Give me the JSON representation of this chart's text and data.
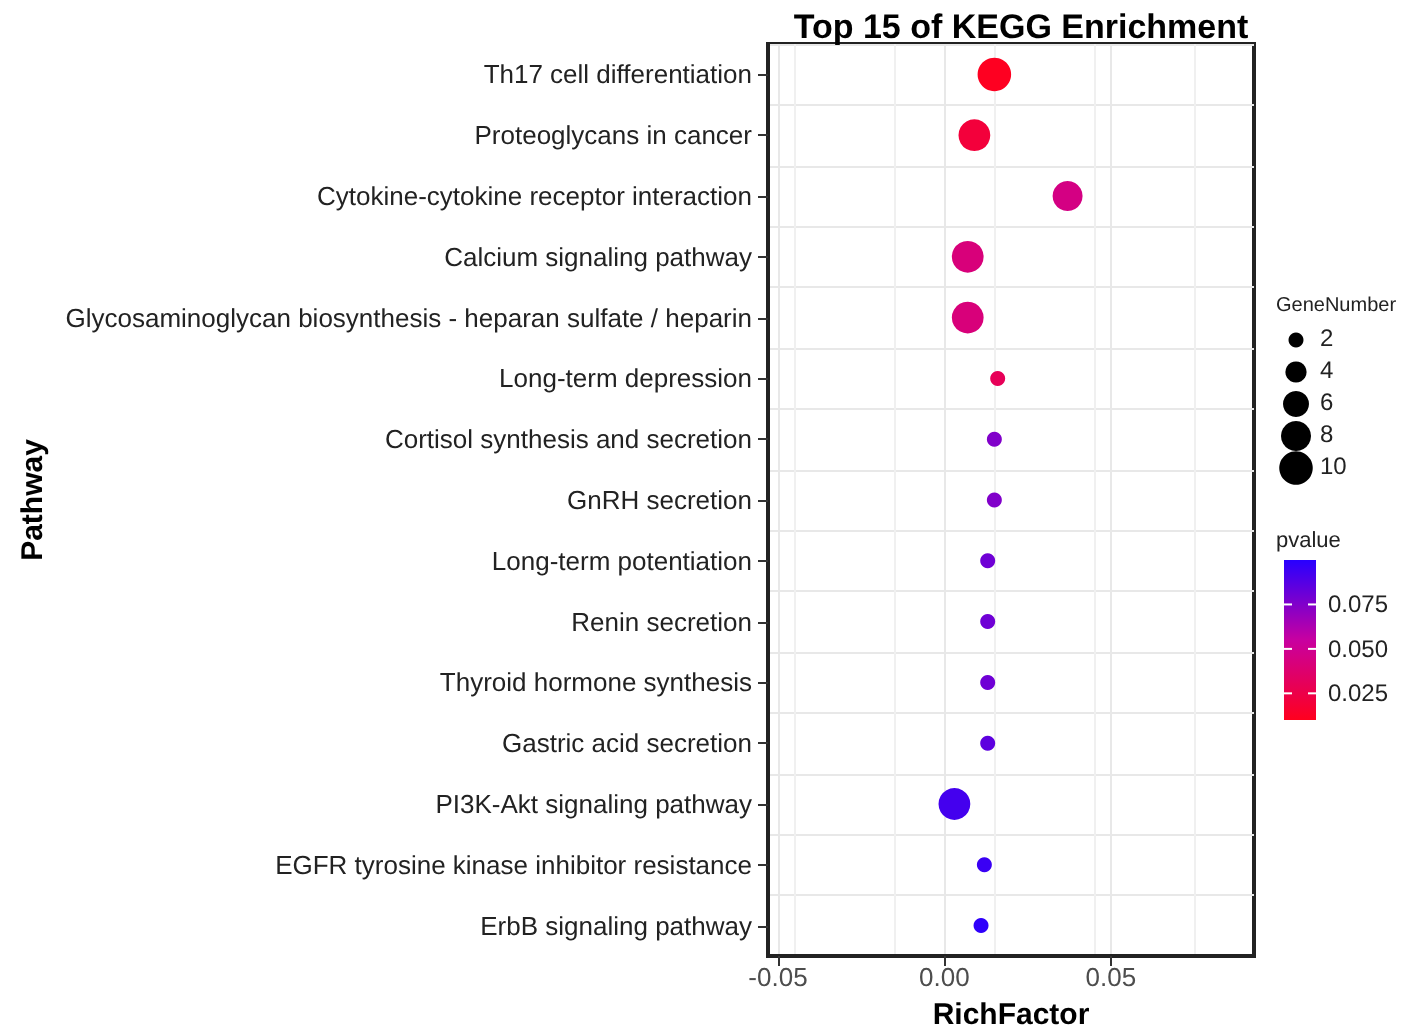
{
  "chart_data": {
    "type": "bubble",
    "title": "Top 15 of KEGG Enrichment",
    "xlabel": "RichFactor",
    "ylabel": "Pathway",
    "orientation": "horizontal",
    "categories": [
      "Th17 cell differentiation",
      "Proteoglycans in cancer",
      "Cytokine-cytokine receptor interaction",
      "Calcium signaling pathway",
      "Glycosaminoglycan biosynthesis - heparan sulfate / heparin",
      "Long-term depression",
      "Cortisol synthesis and secretion",
      "GnRH secretion",
      "Long-term potentiation",
      "Renin secretion",
      "Thyroid hormone synthesis",
      "Gastric acid secretion",
      "PI3K-Akt signaling pathway",
      "EGFR tyrosine kinase inhibitor resistance",
      "ErbB signaling pathway"
    ],
    "values": [
      0.015,
      0.009,
      0.037,
      0.007,
      0.007,
      0.016,
      0.015,
      0.015,
      0.013,
      0.013,
      0.013,
      0.013,
      0.003,
      0.012,
      0.011
    ],
    "sizes": [
      10,
      9,
      8,
      9,
      9,
      2,
      2,
      2,
      2,
      2,
      2,
      2,
      9,
      2,
      2
    ],
    "size_legend": [
      2,
      4,
      6,
      8,
      10
    ],
    "cvalues": [
      0.011,
      0.02,
      0.045,
      0.042,
      0.042,
      0.03,
      0.075,
      0.075,
      0.08,
      0.08,
      0.08,
      0.085,
      0.092,
      0.095,
      0.098
    ],
    "clim": [
      0.01,
      0.1
    ],
    "cticks": [
      0.025,
      {
        "value": 0.05,
        "label": "0.050"
      },
      0.075
    ],
    "clabel": "pvalue",
    "legend_title": "GeneNumber",
    "xlim": [
      -0.053,
      0.093
    ],
    "xticks": [
      -0.05,
      {
        "value": 0,
        "label": "0.00"
      },
      0.05
    ],
    "grid": true,
    "marker": "circle"
  }
}
